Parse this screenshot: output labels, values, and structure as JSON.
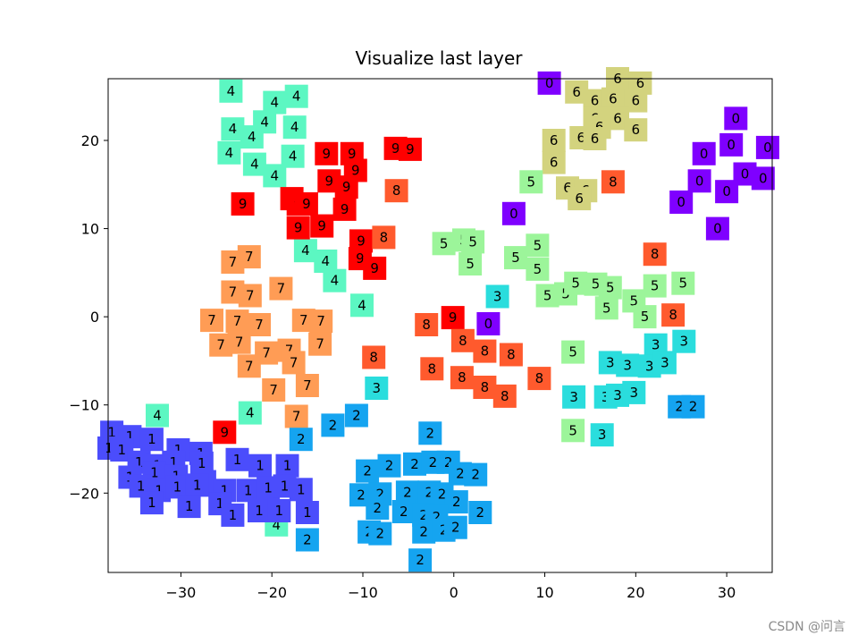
{
  "chart_data": {
    "type": "scatter",
    "title": "Visualize last layer",
    "xlabel": "",
    "ylabel": "",
    "xlim": [
      -38,
      35
    ],
    "ylim": [
      -29,
      27
    ],
    "xticks": [
      -30,
      -20,
      -10,
      0,
      10,
      20,
      30
    ],
    "xtick_labels": [
      "−30",
      "−20",
      "−10",
      "0",
      "10",
      "20",
      "30"
    ],
    "yticks": [
      20,
      10,
      0,
      -10,
      -20
    ],
    "ytick_labels": [
      "20",
      "10",
      "0",
      "−10",
      "−20"
    ],
    "grid": false,
    "marker": "colored square with digit label",
    "class_colors": {
      "0": "#7f00ff",
      "1": "#4b4dfc",
      "2": "#15a4f0",
      "3": "#2adddd",
      "4": "#5cf7c2",
      "5": "#9cf59a",
      "6": "#d3d37e",
      "7": "#ff9c55",
      "8": "#ff5a2d",
      "9": "#ff0000"
    },
    "points": [
      {
        "label": "0",
        "x": 10.5,
        "y": 26.5
      },
      {
        "label": "0",
        "x": 31,
        "y": 22.5
      },
      {
        "label": "0",
        "x": 34.5,
        "y": 19.2
      },
      {
        "label": "0",
        "x": 27.5,
        "y": 18.5
      },
      {
        "label": "0",
        "x": 30.5,
        "y": 19.5
      },
      {
        "label": "0",
        "x": 32,
        "y": 16.2
      },
      {
        "label": "0",
        "x": 34,
        "y": 15.7
      },
      {
        "label": "0",
        "x": 27,
        "y": 15.4
      },
      {
        "label": "0",
        "x": 30,
        "y": 14.2
      },
      {
        "label": "0",
        "x": 25,
        "y": 13
      },
      {
        "label": "0",
        "x": 29,
        "y": 10
      },
      {
        "label": "0",
        "x": 6.6,
        "y": 11.7
      },
      {
        "label": "0",
        "x": 3.8,
        "y": -0.8
      },
      {
        "label": "6",
        "x": 13.5,
        "y": 25.5
      },
      {
        "label": "6",
        "x": 18,
        "y": 27
      },
      {
        "label": "6",
        "x": 20.5,
        "y": 26.5
      },
      {
        "label": "6",
        "x": 15.5,
        "y": 24.5
      },
      {
        "label": "6",
        "x": 17.5,
        "y": 24.7
      },
      {
        "label": "6",
        "x": 20,
        "y": 24.5
      },
      {
        "label": "6",
        "x": 15.5,
        "y": 22.5
      },
      {
        "label": "6",
        "x": 18,
        "y": 22.5
      },
      {
        "label": "6",
        "x": 20,
        "y": 21.2
      },
      {
        "label": "6",
        "x": 16,
        "y": 21.5
      },
      {
        "label": "6",
        "x": 14,
        "y": 20.3
      },
      {
        "label": "6",
        "x": 15.5,
        "y": 20.2
      },
      {
        "label": "6",
        "x": 11,
        "y": 20
      },
      {
        "label": "6",
        "x": 11,
        "y": 17.5
      },
      {
        "label": "6",
        "x": 12.5,
        "y": 14.6
      },
      {
        "label": "6",
        "x": 14.5,
        "y": 14.3
      },
      {
        "label": "6",
        "x": 13.8,
        "y": 13.4
      },
      {
        "label": "4",
        "x": -24.5,
        "y": 25.6
      },
      {
        "label": "4",
        "x": -19.7,
        "y": 24.3
      },
      {
        "label": "4",
        "x": -17.3,
        "y": 25
      },
      {
        "label": "4",
        "x": -24.3,
        "y": 21.3
      },
      {
        "label": "4",
        "x": -20.8,
        "y": 22.1
      },
      {
        "label": "4",
        "x": -17.5,
        "y": 21.5
      },
      {
        "label": "4",
        "x": -22.2,
        "y": 20.4
      },
      {
        "label": "4",
        "x": -24.7,
        "y": 18.6
      },
      {
        "label": "4",
        "x": -21.9,
        "y": 17.3
      },
      {
        "label": "4",
        "x": -17.7,
        "y": 18.2
      },
      {
        "label": "4",
        "x": -19.7,
        "y": 16
      },
      {
        "label": "4",
        "x": -16.3,
        "y": 7.5
      },
      {
        "label": "4",
        "x": -14.1,
        "y": 6.3
      },
      {
        "label": "4",
        "x": -13.1,
        "y": 4.1
      },
      {
        "label": "4",
        "x": -10.1,
        "y": 1.3
      },
      {
        "label": "4",
        "x": -32.6,
        "y": -11.2
      },
      {
        "label": "4",
        "x": -22.4,
        "y": -10.9
      },
      {
        "label": "4",
        "x": -19.5,
        "y": -23.6
      },
      {
        "label": "9",
        "x": -14,
        "y": 18.5
      },
      {
        "label": "9",
        "x": -11.2,
        "y": 18.5
      },
      {
        "label": "9",
        "x": -6.4,
        "y": 19.1
      },
      {
        "label": "9",
        "x": -4.8,
        "y": 19
      },
      {
        "label": "9",
        "x": -13.7,
        "y": 15.4
      },
      {
        "label": "9",
        "x": -10.8,
        "y": 16.6
      },
      {
        "label": "9",
        "x": -11.8,
        "y": 14.7
      },
      {
        "label": "9",
        "x": -23.2,
        "y": 12.8
      },
      {
        "label": "9",
        "x": -17.8,
        "y": 13.4
      },
      {
        "label": "9",
        "x": -17.1,
        "y": 12.8
      },
      {
        "label": "9",
        "x": -16.2,
        "y": 12.8
      },
      {
        "label": "9",
        "x": -12,
        "y": 12.2
      },
      {
        "label": "9",
        "x": -17.1,
        "y": 10.1
      },
      {
        "label": "9",
        "x": -14.5,
        "y": 10.3
      },
      {
        "label": "9",
        "x": -10.2,
        "y": 8.6
      },
      {
        "label": "9",
        "x": -10.3,
        "y": 6.6
      },
      {
        "label": "9",
        "x": -8.7,
        "y": 5.5
      },
      {
        "label": "9",
        "x": -25.2,
        "y": -13.1
      },
      {
        "label": "9",
        "x": -0.1,
        "y": -0.1
      },
      {
        "label": "8",
        "x": -6.3,
        "y": 14.3
      },
      {
        "label": "8",
        "x": 17.5,
        "y": 15.3
      },
      {
        "label": "8",
        "x": -7.7,
        "y": 9
      },
      {
        "label": "8",
        "x": 22.1,
        "y": 7.1
      },
      {
        "label": "8",
        "x": 24.1,
        "y": 0.2
      },
      {
        "label": "8",
        "x": -3,
        "y": -0.9
      },
      {
        "label": "8",
        "x": 1,
        "y": -2.7
      },
      {
        "label": "8",
        "x": 3.4,
        "y": -3.9
      },
      {
        "label": "8",
        "x": 6.3,
        "y": -4.3
      },
      {
        "label": "8",
        "x": -8.8,
        "y": -4.6
      },
      {
        "label": "8",
        "x": -2.4,
        "y": -5.9
      },
      {
        "label": "8",
        "x": 0.9,
        "y": -6.9
      },
      {
        "label": "8",
        "x": 9.4,
        "y": -7
      },
      {
        "label": "8",
        "x": 3.4,
        "y": -8
      },
      {
        "label": "8",
        "x": 5.6,
        "y": -9
      },
      {
        "label": "7",
        "x": -24.3,
        "y": 6.2
      },
      {
        "label": "7",
        "x": -22.5,
        "y": 6.8
      },
      {
        "label": "7",
        "x": -24.3,
        "y": 2.8
      },
      {
        "label": "7",
        "x": -22.4,
        "y": 2.4
      },
      {
        "label": "7",
        "x": -19,
        "y": 3.2
      },
      {
        "label": "7",
        "x": -26.6,
        "y": -0.4
      },
      {
        "label": "7",
        "x": -23.8,
        "y": -0.5
      },
      {
        "label": "7",
        "x": -21.4,
        "y": -0.9
      },
      {
        "label": "7",
        "x": -16.5,
        "y": -0.4
      },
      {
        "label": "7",
        "x": -14.6,
        "y": -0.5
      },
      {
        "label": "7",
        "x": -25.6,
        "y": -3.2
      },
      {
        "label": "7",
        "x": -23.6,
        "y": -2.9
      },
      {
        "label": "7",
        "x": -20.6,
        "y": -4.1
      },
      {
        "label": "7",
        "x": -18.1,
        "y": -3.8
      },
      {
        "label": "7",
        "x": -14.7,
        "y": -3.1
      },
      {
        "label": "7",
        "x": -22.5,
        "y": -5.6
      },
      {
        "label": "7",
        "x": -17.6,
        "y": -5.2
      },
      {
        "label": "7",
        "x": -16.1,
        "y": -7.8
      },
      {
        "label": "7",
        "x": -19.8,
        "y": -8.3
      },
      {
        "label": "7",
        "x": -17.3,
        "y": -11.3
      },
      {
        "label": "5",
        "x": -1.1,
        "y": 8.3
      },
      {
        "label": "5",
        "x": 1.1,
        "y": 8.7
      },
      {
        "label": "5",
        "x": 2.1,
        "y": 8.5
      },
      {
        "label": "5",
        "x": 1.8,
        "y": 6
      },
      {
        "label": "5",
        "x": 6.8,
        "y": 6.7
      },
      {
        "label": "5",
        "x": 9.2,
        "y": 8.1
      },
      {
        "label": "5",
        "x": 9.2,
        "y": 5.4
      },
      {
        "label": "5",
        "x": 8.5,
        "y": 15.3
      },
      {
        "label": "5",
        "x": 10.3,
        "y": 2.4
      },
      {
        "label": "5",
        "x": 12.3,
        "y": 2.6
      },
      {
        "label": "5",
        "x": 13.4,
        "y": 3.8
      },
      {
        "label": "5",
        "x": 15.6,
        "y": 3.7
      },
      {
        "label": "5",
        "x": 17.2,
        "y": 3.3
      },
      {
        "label": "5",
        "x": 16.8,
        "y": 1
      },
      {
        "label": "5",
        "x": 19.8,
        "y": 1.8
      },
      {
        "label": "5",
        "x": 22.1,
        "y": 3.5
      },
      {
        "label": "5",
        "x": 25.2,
        "y": 3.8
      },
      {
        "label": "5",
        "x": 21,
        "y": 0
      },
      {
        "label": "5",
        "x": 13.1,
        "y": -4
      },
      {
        "label": "5",
        "x": 13.1,
        "y": -12.9
      },
      {
        "label": "3",
        "x": 4.8,
        "y": 2.3
      },
      {
        "label": "3",
        "x": 25.3,
        "y": -2.8
      },
      {
        "label": "3",
        "x": 22.2,
        "y": -3.2
      },
      {
        "label": "3",
        "x": 17.2,
        "y": -5.2
      },
      {
        "label": "3",
        "x": 19.1,
        "y": -5.5
      },
      {
        "label": "3",
        "x": 21.5,
        "y": -5.6
      },
      {
        "label": "3",
        "x": 23.2,
        "y": -5.2
      },
      {
        "label": "3",
        "x": -8.5,
        "y": -8.1
      },
      {
        "label": "3",
        "x": 13.2,
        "y": -9.1
      },
      {
        "label": "3",
        "x": 16.7,
        "y": -9.1
      },
      {
        "label": "3",
        "x": 18,
        "y": -8.9
      },
      {
        "label": "3",
        "x": 19.8,
        "y": -8.6
      },
      {
        "label": "3",
        "x": 16.3,
        "y": -13.4
      },
      {
        "label": "2",
        "x": -13.3,
        "y": -12.3
      },
      {
        "label": "2",
        "x": -10.7,
        "y": -11.2
      },
      {
        "label": "2",
        "x": -2.6,
        "y": -13.2
      },
      {
        "label": "2",
        "x": 24.8,
        "y": -10.2
      },
      {
        "label": "2",
        "x": 26.3,
        "y": -10.2
      },
      {
        "label": "2",
        "x": -16.8,
        "y": -13.9
      },
      {
        "label": "2",
        "x": -9.5,
        "y": -17.5
      },
      {
        "label": "2",
        "x": -7.1,
        "y": -16.9
      },
      {
        "label": "2",
        "x": -4.3,
        "y": -16.7
      },
      {
        "label": "2",
        "x": -2.3,
        "y": -16.5
      },
      {
        "label": "2",
        "x": -0.6,
        "y": -16.5
      },
      {
        "label": "2",
        "x": 0.7,
        "y": -17.8
      },
      {
        "label": "2",
        "x": 2.4,
        "y": -17.9
      },
      {
        "label": "2",
        "x": -10.2,
        "y": -20.2
      },
      {
        "label": "2",
        "x": -8.1,
        "y": -20.1
      },
      {
        "label": "2",
        "x": -5.1,
        "y": -19.9
      },
      {
        "label": "2",
        "x": -2.7,
        "y": -19.9
      },
      {
        "label": "2",
        "x": -1.3,
        "y": -20.1
      },
      {
        "label": "2",
        "x": 0.3,
        "y": -21
      },
      {
        "label": "2",
        "x": -8.4,
        "y": -21.7
      },
      {
        "label": "2",
        "x": -5.5,
        "y": -22.1
      },
      {
        "label": "2",
        "x": -3.3,
        "y": -22.5
      },
      {
        "label": "2",
        "x": -1.9,
        "y": -22.7
      },
      {
        "label": "2",
        "x": 2.9,
        "y": -22.2
      },
      {
        "label": "2",
        "x": -9.3,
        "y": -24.4
      },
      {
        "label": "2",
        "x": -8.1,
        "y": -24.6
      },
      {
        "label": "2",
        "x": -3.3,
        "y": -24.4
      },
      {
        "label": "2",
        "x": -1.1,
        "y": -24.2
      },
      {
        "label": "2",
        "x": 0.2,
        "y": -23.9
      },
      {
        "label": "2",
        "x": -16.1,
        "y": -25.3
      },
      {
        "label": "2",
        "x": -3.7,
        "y": -27.6
      },
      {
        "label": "1",
        "x": -37.6,
        "y": -13.1
      },
      {
        "label": "1",
        "x": -35.6,
        "y": -13.6
      },
      {
        "label": "1",
        "x": -33.2,
        "y": -13.9
      },
      {
        "label": "1",
        "x": -37.9,
        "y": -14.9
      },
      {
        "label": "1",
        "x": -36.5,
        "y": -15.1
      },
      {
        "label": "1",
        "x": -34.6,
        "y": -16.5
      },
      {
        "label": "1",
        "x": -30.3,
        "y": -15.1
      },
      {
        "label": "1",
        "x": -27.8,
        "y": -15.5
      },
      {
        "label": "1",
        "x": -32.6,
        "y": -16.9
      },
      {
        "label": "1",
        "x": -30.8,
        "y": -16.5
      },
      {
        "label": "1",
        "x": -27.7,
        "y": -16.6
      },
      {
        "label": "1",
        "x": -23.8,
        "y": -16.2
      },
      {
        "label": "1",
        "x": -35.6,
        "y": -18.2
      },
      {
        "label": "1",
        "x": -32.9,
        "y": -17.7
      },
      {
        "label": "1",
        "x": -30.5,
        "y": -18.1
      },
      {
        "label": "1",
        "x": -27.4,
        "y": -18.7
      },
      {
        "label": "1",
        "x": -21.3,
        "y": -16.9
      },
      {
        "label": "1",
        "x": -18.3,
        "y": -16.9
      },
      {
        "label": "1",
        "x": -34.4,
        "y": -19.2
      },
      {
        "label": "1",
        "x": -32.4,
        "y": -19.7
      },
      {
        "label": "1",
        "x": -30.4,
        "y": -19.3
      },
      {
        "label": "1",
        "x": -28.2,
        "y": -19.1
      },
      {
        "label": "1",
        "x": -25.2,
        "y": -19.7
      },
      {
        "label": "1",
        "x": -22.6,
        "y": -19.7
      },
      {
        "label": "1",
        "x": -20.4,
        "y": -19.4
      },
      {
        "label": "1",
        "x": -18.6,
        "y": -19.2
      },
      {
        "label": "1",
        "x": -16.8,
        "y": -19.6
      },
      {
        "label": "1",
        "x": -33.2,
        "y": -21.1
      },
      {
        "label": "1",
        "x": -29.1,
        "y": -21.5
      },
      {
        "label": "1",
        "x": -25.7,
        "y": -21.2
      },
      {
        "label": "1",
        "x": -21.4,
        "y": -22
      },
      {
        "label": "1",
        "x": -19.2,
        "y": -22
      },
      {
        "label": "1",
        "x": -16.1,
        "y": -22.2
      },
      {
        "label": "1",
        "x": -24.3,
        "y": -22.5
      }
    ]
  },
  "watermark": "CSDN @问言"
}
